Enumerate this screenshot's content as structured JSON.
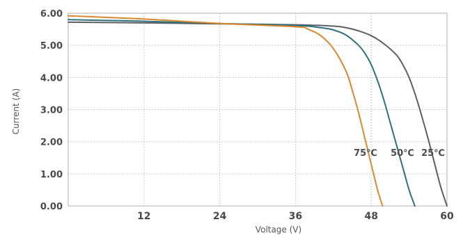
{
  "chart_data": {
    "type": "line",
    "title": "",
    "xlabel": "Voltage (V)",
    "ylabel": "Current (A)",
    "xlim": [
      0,
      60
    ],
    "ylim": [
      0,
      6
    ],
    "xticks": [
      12,
      24,
      36,
      48,
      60
    ],
    "xtick_labels": [
      "12",
      "24",
      "36",
      "48",
      "60"
    ],
    "yticks": [
      0,
      1,
      2,
      3,
      4,
      5,
      6
    ],
    "ytick_labels": [
      "0.00",
      "1.00",
      "2.00",
      "3.00",
      "4.00",
      "5.00",
      "6.00"
    ],
    "grid": true,
    "series": [
      {
        "name": "75℃",
        "color": "#d9892b",
        "x": [
          0,
          12,
          24,
          36,
          38,
          40,
          42,
          44,
          45,
          46,
          47,
          48,
          49,
          49.8
        ],
        "y": [
          5.92,
          5.82,
          5.68,
          5.58,
          5.5,
          5.3,
          4.9,
          4.2,
          3.6,
          2.9,
          2.1,
          1.3,
          0.5,
          0
        ]
      },
      {
        "name": "50℃",
        "color": "#2f6f7c",
        "x": [
          0,
          12,
          24,
          36,
          40,
          42,
          44,
          46,
          47,
          48,
          49,
          50,
          51,
          52,
          53,
          54,
          54.9
        ],
        "y": [
          5.8,
          5.75,
          5.68,
          5.62,
          5.55,
          5.48,
          5.32,
          5.0,
          4.75,
          4.4,
          3.9,
          3.3,
          2.6,
          1.9,
          1.2,
          0.5,
          0
        ]
      },
      {
        "name": "25℃",
        "color": "#5a5f66",
        "x": [
          0,
          12,
          24,
          36,
          42,
          44,
          46,
          48,
          50,
          52,
          53,
          54,
          55,
          56,
          57,
          58,
          59,
          60
        ],
        "y": [
          5.72,
          5.7,
          5.67,
          5.64,
          5.6,
          5.55,
          5.45,
          5.3,
          5.05,
          4.7,
          4.4,
          4.0,
          3.45,
          2.8,
          2.1,
          1.35,
          0.6,
          0
        ]
      }
    ]
  }
}
